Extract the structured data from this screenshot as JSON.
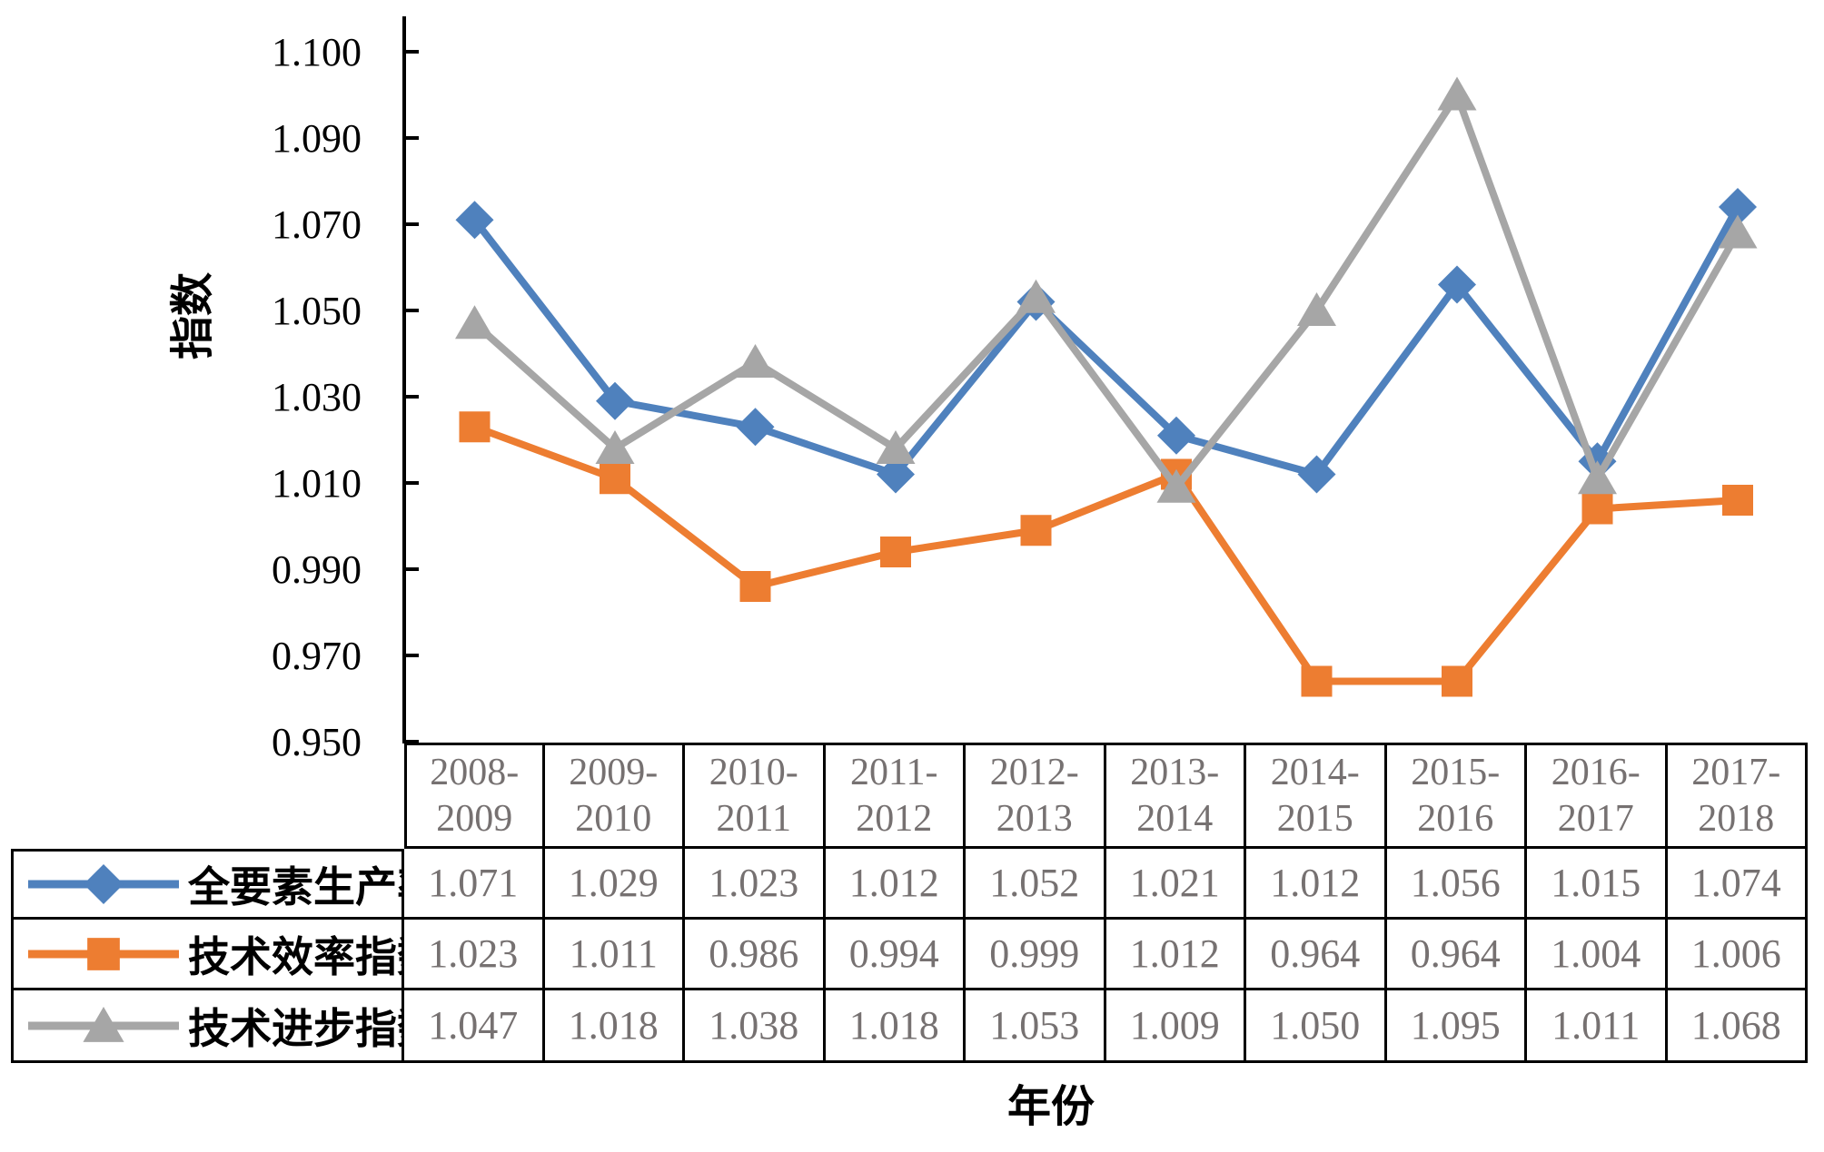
{
  "figure": {
    "y_axis_title": "指数",
    "x_axis_title": "年份"
  },
  "chart_data": {
    "type": "line",
    "title": "",
    "xlabel": "年份",
    "ylabel": "指数",
    "grid": false,
    "legend_position": "table-left",
    "categories": [
      "2008-2009",
      "2009-2010",
      "2010-2011",
      "2011-2012",
      "2012-2013",
      "2013-2014",
      "2014-2015",
      "2015-2016",
      "2016-2017",
      "2017-2018"
    ],
    "y_axis": {
      "tick_values": [
        0.95,
        0.97,
        0.99,
        1.01,
        1.03,
        1.05,
        1.07,
        1.09,
        1.1
      ],
      "tick_labels": [
        "0.950",
        "0.970",
        "0.990",
        "1.010",
        "1.030",
        "1.050",
        "1.070",
        "1.090",
        "1.100"
      ],
      "min": 0.95,
      "max": 1.1
    },
    "series": [
      {
        "name": "全要素生产率",
        "marker": "diamond",
        "color": "#4F81BD",
        "values": [
          1.071,
          1.029,
          1.023,
          1.012,
          1.052,
          1.021,
          1.012,
          1.056,
          1.015,
          1.074
        ]
      },
      {
        "name": "技术效率指数",
        "marker": "square",
        "color": "#ED7D31",
        "values": [
          1.023,
          1.011,
          0.986,
          0.994,
          0.999,
          1.012,
          0.964,
          0.964,
          1.004,
          1.006
        ]
      },
      {
        "name": "技术进步指数",
        "marker": "triangle",
        "color": "#A6A6A6",
        "values": [
          1.047,
          1.018,
          1.038,
          1.018,
          1.053,
          1.009,
          1.05,
          1.095,
          1.011,
          1.068
        ]
      }
    ]
  }
}
